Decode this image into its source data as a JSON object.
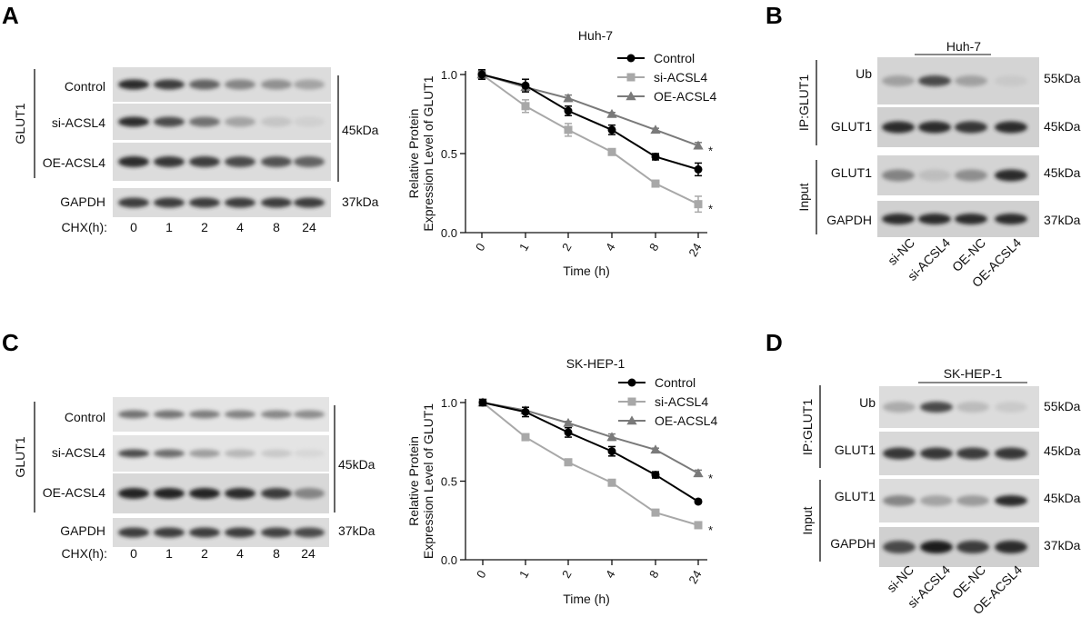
{
  "panels": [
    {
      "letter": "A",
      "blot": {
        "group_label": "GLUT1",
        "rows": [
          "Control",
          "si-ACSL4",
          "OE-ACSL4",
          "GAPDH"
        ],
        "kda_main": "45kDa",
        "kda_gapdh": "37kDa",
        "chx_label": "CHX(h):",
        "chx_values": [
          "0",
          "1",
          "2",
          "4",
          "8",
          "24"
        ]
      }
    },
    {
      "letter": "B"
    },
    {
      "letter": "C",
      "blot": {
        "group_label": "GLUT1",
        "rows": [
          "Control",
          "si-ACSL4",
          "OE-ACSL4",
          "GAPDH"
        ],
        "kda_main": "45kDa",
        "kda_gapdh": "37kDa",
        "chx_label": "CHX(h):",
        "chx_values": [
          "0",
          "1",
          "2",
          "4",
          "8",
          "24"
        ]
      }
    },
    {
      "letter": "D"
    }
  ],
  "ip_panels": [
    {
      "title": "Huh-7",
      "ip_label": "IP:GLUT1",
      "input_label": "Input",
      "rows": [
        {
          "name": "Ub",
          "kda": "55kDa"
        },
        {
          "name": "GLUT1",
          "kda": "45kDa"
        },
        {
          "name": "GLUT1",
          "kda": "45kDa"
        },
        {
          "name": "GAPDH",
          "kda": "37kDa"
        }
      ],
      "lanes": [
        "si-NC",
        "si-ACSL4",
        "OE-NC",
        "OE-ACSL4"
      ]
    },
    {
      "title": "SK-HEP-1",
      "ip_label": "IP:GLUT1",
      "input_label": "Input",
      "rows": [
        {
          "name": "Ub",
          "kda": "55kDa"
        },
        {
          "name": "GLUT1",
          "kda": "45kDa"
        },
        {
          "name": "GLUT1",
          "kda": "45kDa"
        },
        {
          "name": "GAPDH",
          "kda": "37kDa"
        }
      ],
      "lanes": [
        "si-NC",
        "si-ACSL4",
        "OE-NC",
        "OE-ACSL4"
      ]
    }
  ],
  "chart_data": [
    {
      "type": "line",
      "title": "Huh-7",
      "xlabel": "Time (h)",
      "ylabel_line1": "Relative Protein",
      "ylabel_line2": "Expression Level of GLUT1",
      "categories": [
        "0",
        "1",
        "2",
        "4",
        "8",
        "24"
      ],
      "ylim": [
        0,
        1.0
      ],
      "yticks": [
        "0.0",
        "0.5",
        "1.0"
      ],
      "legend_position": "top-right",
      "significance": "*",
      "series": [
        {
          "name": "Control",
          "marker": "circle",
          "color": "#000000",
          "values": [
            1.0,
            0.93,
            0.77,
            0.65,
            0.48,
            0.4
          ],
          "errors": [
            0.03,
            0.04,
            0.03,
            0.03,
            0.02,
            0.04
          ]
        },
        {
          "name": "si-ACSL4",
          "marker": "square",
          "color": "#a8a8a8",
          "values": [
            1.0,
            0.8,
            0.65,
            0.51,
            0.31,
            0.18
          ],
          "errors": [
            0.03,
            0.04,
            0.04,
            0.02,
            0.02,
            0.05
          ]
        },
        {
          "name": "OE-ACSL4",
          "marker": "triangle",
          "color": "#7a7a7a",
          "values": [
            1.0,
            0.92,
            0.85,
            0.75,
            0.65,
            0.55
          ],
          "errors": [
            0.02,
            0.02,
            0.02,
            0.01,
            0.01,
            0.02
          ]
        }
      ],
      "starred_series": [
        "OE-ACSL4",
        "si-ACSL4"
      ]
    },
    {
      "type": "line",
      "title": "SK-HEP-1",
      "xlabel": "Time (h)",
      "ylabel_line1": "Relative Protein",
      "ylabel_line2": "Expression Level of GLUT1",
      "categories": [
        "0",
        "1",
        "2",
        "4",
        "8",
        "24"
      ],
      "ylim": [
        0,
        1.0
      ],
      "yticks": [
        "0.0",
        "0.5",
        "1.0"
      ],
      "legend_position": "top-right",
      "significance": "*",
      "series": [
        {
          "name": "Control",
          "marker": "circle",
          "color": "#000000",
          "values": [
            1.0,
            0.94,
            0.81,
            0.69,
            0.54,
            0.37
          ],
          "errors": [
            0.02,
            0.03,
            0.03,
            0.03,
            0.02,
            0.01
          ]
        },
        {
          "name": "si-ACSL4",
          "marker": "square",
          "color": "#a8a8a8",
          "values": [
            1.0,
            0.78,
            0.62,
            0.49,
            0.3,
            0.22
          ],
          "errors": [
            0.01,
            0.01,
            0.01,
            0.01,
            0.01,
            0.01
          ]
        },
        {
          "name": "OE-ACSL4",
          "marker": "triangle",
          "color": "#7a7a7a",
          "values": [
            1.0,
            0.95,
            0.87,
            0.78,
            0.7,
            0.55
          ],
          "errors": [
            0.01,
            0.02,
            0.01,
            0.02,
            0.01,
            0.02
          ]
        }
      ],
      "starred_series": [
        "OE-ACSL4",
        "si-ACSL4"
      ]
    }
  ]
}
